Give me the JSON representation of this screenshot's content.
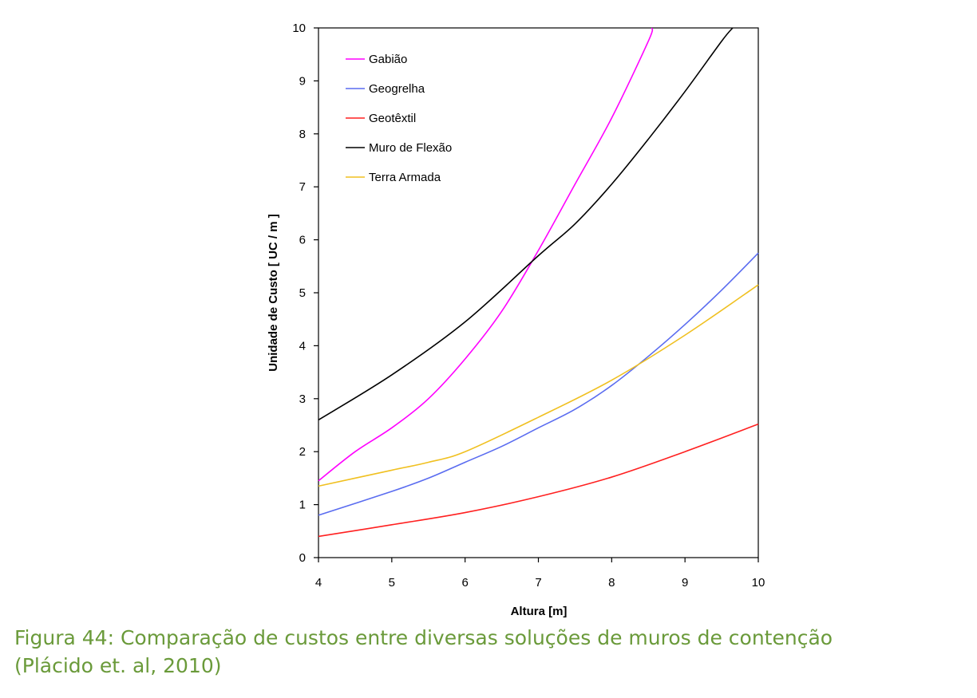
{
  "caption": {
    "line1": "Figura 44: Comparação de custos entre diversas soluções de muros de contenção",
    "line2": "(Plácido et. al, 2010)"
  },
  "chart_data": {
    "type": "line",
    "title": "",
    "xlabel": "Altura [m]",
    "ylabel": "Unidade de Custo [ UC / m ]",
    "xlim": [
      4,
      10
    ],
    "ylim": [
      0,
      10
    ],
    "x_ticks": [
      4,
      5,
      6,
      7,
      8,
      9,
      10
    ],
    "y_ticks": [
      0,
      1,
      2,
      3,
      4,
      5,
      6,
      7,
      8,
      9,
      10
    ],
    "grid": false,
    "legend_position": "top-left",
    "series": [
      {
        "name": "Gabião",
        "color": "#ff00ff",
        "points": [
          [
            4,
            1.45
          ],
          [
            4.5,
            2.0
          ],
          [
            5,
            2.45
          ],
          [
            5.5,
            3.0
          ],
          [
            6,
            3.75
          ],
          [
            6.5,
            4.65
          ],
          [
            7,
            5.8
          ],
          [
            7.5,
            7.05
          ],
          [
            8,
            8.3
          ],
          [
            8.5,
            9.75
          ],
          [
            8.55,
            10.0
          ]
        ]
      },
      {
        "name": "Geogrelha",
        "color": "#5a6cf0",
        "points": [
          [
            4,
            0.8
          ],
          [
            5,
            1.25
          ],
          [
            5.5,
            1.5
          ],
          [
            6,
            1.8
          ],
          [
            6.5,
            2.1
          ],
          [
            7,
            2.45
          ],
          [
            7.5,
            2.8
          ],
          [
            8,
            3.25
          ],
          [
            8.5,
            3.8
          ],
          [
            9,
            4.4
          ],
          [
            9.5,
            5.05
          ],
          [
            10,
            5.75
          ]
        ]
      },
      {
        "name": "Geotêxtil",
        "color": "#ff2020",
        "points": [
          [
            4,
            0.4
          ],
          [
            5,
            0.62
          ],
          [
            6,
            0.85
          ],
          [
            7,
            1.15
          ],
          [
            8,
            1.52
          ],
          [
            9,
            2.0
          ],
          [
            10,
            2.52
          ]
        ]
      },
      {
        "name": "Muro de Flexão",
        "color": "#000000",
        "points": [
          [
            4,
            2.6
          ],
          [
            5,
            3.45
          ],
          [
            6,
            4.45
          ],
          [
            7,
            5.7
          ],
          [
            7.5,
            6.3
          ],
          [
            8,
            7.05
          ],
          [
            8.5,
            7.9
          ],
          [
            9,
            8.8
          ],
          [
            9.5,
            9.75
          ],
          [
            9.65,
            10.0
          ]
        ]
      },
      {
        "name": "Terra Armada",
        "color": "#f0c020",
        "points": [
          [
            4,
            1.35
          ],
          [
            5,
            1.65
          ],
          [
            5.5,
            1.8
          ],
          [
            6,
            2.0
          ],
          [
            7,
            2.65
          ],
          [
            8,
            3.35
          ],
          [
            9,
            4.2
          ],
          [
            10,
            5.15
          ]
        ]
      }
    ]
  }
}
